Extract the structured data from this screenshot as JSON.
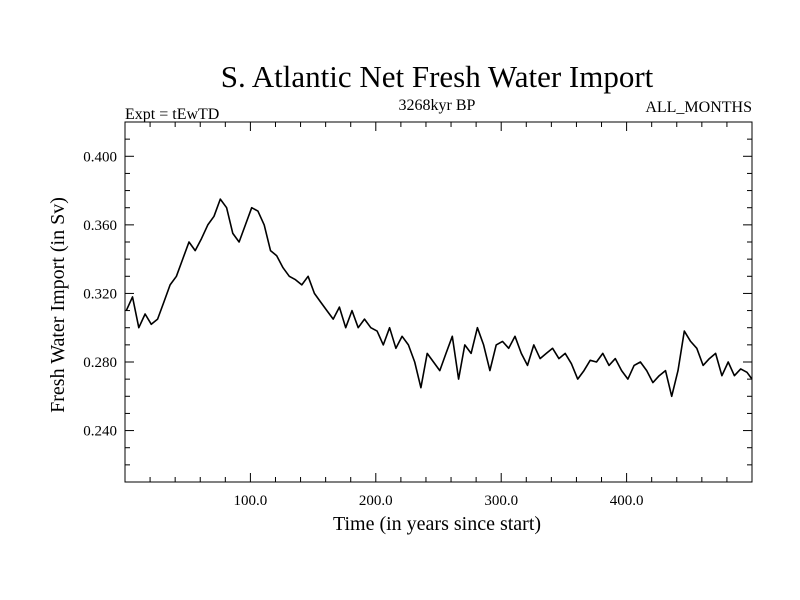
{
  "chart_data": {
    "type": "line",
    "title": "S. Atlantic Net Fresh Water Import",
    "subtitle_left": "Expt = tEwTD",
    "subtitle_center": "3268kyr BP",
    "subtitle_right": "ALL_MONTHS",
    "xlabel": "Time (in years since start)",
    "ylabel": "Fresh Water Import (in Sv)",
    "xlim": [
      0,
      500
    ],
    "ylim": [
      0.21,
      0.42
    ],
    "xticks": [
      100,
      200,
      300,
      400
    ],
    "xtick_labels": [
      "100.0",
      "200.0",
      "300.0",
      "400.0"
    ],
    "yticks": [
      0.24,
      0.28,
      0.32,
      0.36,
      0.4
    ],
    "ytick_labels": [
      "0.240",
      "0.280",
      "0.320",
      "0.360",
      "0.400"
    ],
    "grid": false,
    "series": [
      {
        "name": "fresh water import",
        "x_start": 1,
        "x_step": 5,
        "values": [
          0.31,
          0.318,
          0.3,
          0.308,
          0.302,
          0.305,
          0.315,
          0.325,
          0.33,
          0.34,
          0.35,
          0.345,
          0.352,
          0.36,
          0.365,
          0.375,
          0.37,
          0.355,
          0.35,
          0.36,
          0.37,
          0.368,
          0.36,
          0.345,
          0.342,
          0.335,
          0.33,
          0.328,
          0.325,
          0.33,
          0.32,
          0.315,
          0.31,
          0.305,
          0.312,
          0.3,
          0.31,
          0.3,
          0.305,
          0.3,
          0.298,
          0.29,
          0.3,
          0.288,
          0.295,
          0.29,
          0.28,
          0.265,
          0.285,
          0.28,
          0.275,
          0.285,
          0.295,
          0.27,
          0.29,
          0.285,
          0.3,
          0.29,
          0.275,
          0.29,
          0.292,
          0.288,
          0.295,
          0.285,
          0.278,
          0.29,
          0.282,
          0.285,
          0.288,
          0.282,
          0.285,
          0.279,
          0.27,
          0.275,
          0.281,
          0.28,
          0.285,
          0.278,
          0.282,
          0.275,
          0.27,
          0.278,
          0.28,
          0.275,
          0.268,
          0.272,
          0.275,
          0.26,
          0.275,
          0.298,
          0.292,
          0.288,
          0.278,
          0.282,
          0.285,
          0.272,
          0.28,
          0.272,
          0.276,
          0.274,
          0.27
        ]
      }
    ]
  }
}
